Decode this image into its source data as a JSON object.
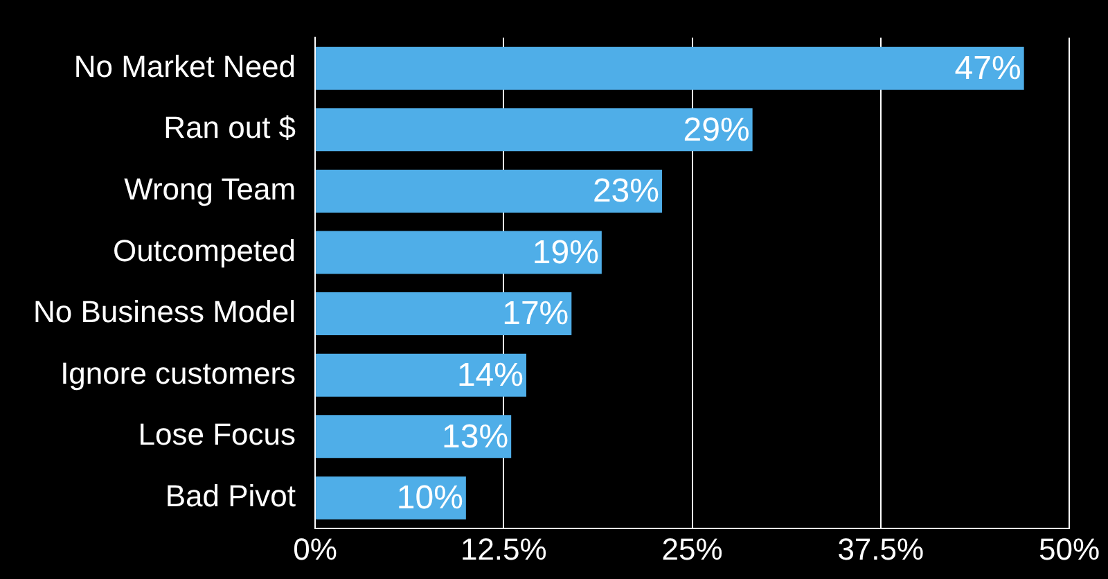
{
  "chart_data": {
    "type": "bar",
    "orientation": "horizontal",
    "categories": [
      "No Market Need",
      "Ran out $",
      "Wrong Team",
      "Outcompeted",
      "No Business Model",
      "Ignore customers",
      "Lose Focus",
      "Bad Pivot"
    ],
    "values": [
      47,
      29,
      23,
      19,
      17,
      14,
      13,
      10
    ],
    "value_labels": [
      "47%",
      "29%",
      "23%",
      "19%",
      "17%",
      "14%",
      "13%",
      "10%"
    ],
    "color": "#4faee8",
    "xlim": [
      0,
      50
    ],
    "xticks": [
      {
        "value": 0,
        "label": "0%"
      },
      {
        "value": 12.5,
        "label": "12.5%"
      },
      {
        "value": 25,
        "label": "25%"
      },
      {
        "value": 37.5,
        "label": "37.5%"
      },
      {
        "value": 50,
        "label": "50%"
      }
    ],
    "grid": "x",
    "legend": false
  }
}
